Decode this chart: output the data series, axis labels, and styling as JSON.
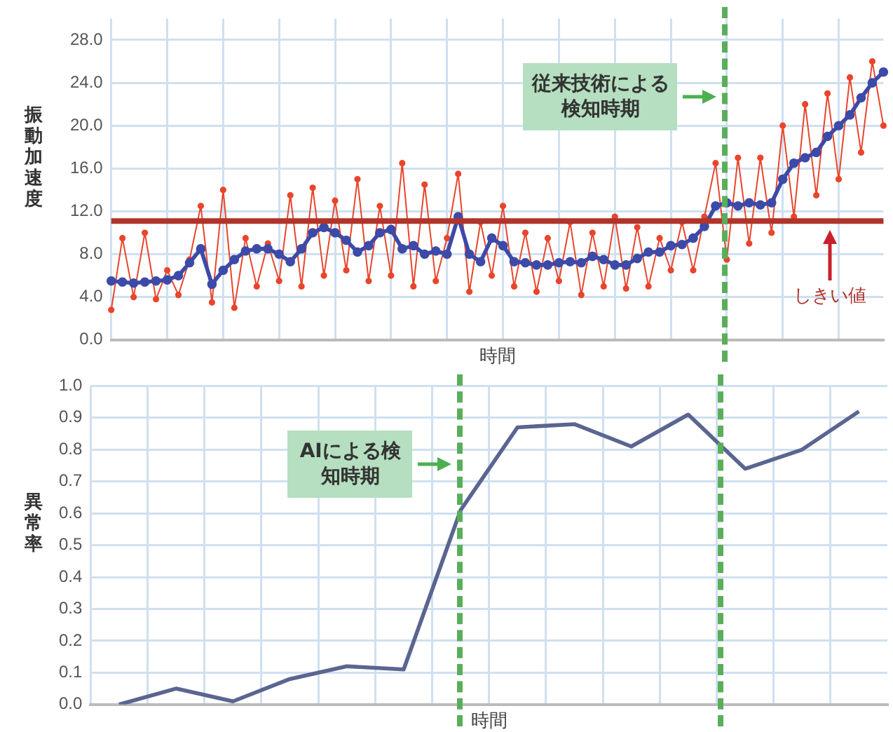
{
  "chart_data": [
    {
      "type": "line",
      "xlabel": "時間",
      "ylabel": "振動加速度",
      "marker": "circle",
      "grid": true,
      "legend": false,
      "tick_labels": "y",
      "annotations": [
        "従来技術による検知時期"
      ],
      "ylim": [
        0,
        30
      ],
      "yticks": [
        {
          "value": 0,
          "label": "0.0"
        },
        {
          "value": 4,
          "label": "4.0"
        },
        {
          "value": 8,
          "label": "8.0"
        },
        {
          "value": 12,
          "label": "12.0"
        },
        {
          "value": 16,
          "label": "16.0"
        },
        {
          "value": 20,
          "label": "20.0"
        },
        {
          "value": 24,
          "label": "24.0"
        },
        {
          "value": 28,
          "label": "28.0"
        }
      ],
      "categories": [
        null,
        null,
        null,
        null,
        null,
        null,
        null,
        null,
        null,
        null,
        null,
        null,
        null,
        null,
        null,
        null,
        null,
        null,
        null,
        null,
        null,
        null,
        null,
        null,
        null,
        null,
        null,
        null,
        null,
        null,
        null,
        null,
        null,
        null,
        null,
        null,
        null,
        null,
        null,
        null,
        null,
        null,
        null,
        null,
        null,
        null,
        null,
        null,
        null,
        null,
        null,
        null,
        null,
        null,
        null,
        null,
        null,
        null,
        null,
        null,
        null,
        null,
        null,
        null,
        null,
        null,
        null,
        null,
        null,
        null
      ],
      "series": [
        {
          "color": "#e8452c",
          "values": [
            2.8,
            9.5,
            4.0,
            10.0,
            3.8,
            6.5,
            4.2,
            7.5,
            12.5,
            3.5,
            14.0,
            3.0,
            9.5,
            5.0,
            9.0,
            5.5,
            13.5,
            5.0,
            14.2,
            6.0,
            13.0,
            6.5,
            15.0,
            5.5,
            12.5,
            6.0,
            16.5,
            5.0,
            14.5,
            5.5,
            9.5,
            15.5,
            4.5,
            11.0,
            6.0,
            12.5,
            5.0,
            10.0,
            4.5,
            9.5,
            5.5,
            11.0,
            4.2,
            10.0,
            5.0,
            11.5,
            4.8,
            10.5,
            5.0,
            9.5,
            6.5,
            11.0,
            6.5,
            11.5,
            16.5,
            7.5,
            17.0,
            9.0,
            17.0,
            10.0,
            20.0,
            11.5,
            22.0,
            13.5,
            23.0,
            15.0,
            24.5,
            17.5,
            26.0,
            20.0
          ]
        },
        {
          "color": "#3c4aa8",
          "values": [
            5.5,
            5.4,
            5.3,
            5.4,
            5.5,
            5.6,
            6.0,
            7.2,
            8.5,
            5.2,
            6.5,
            7.5,
            8.3,
            8.5,
            8.5,
            8.0,
            7.3,
            8.5,
            10.0,
            10.5,
            10.0,
            9.3,
            8.2,
            8.8,
            10.0,
            10.3,
            8.5,
            8.8,
            8.0,
            8.3,
            8.0,
            11.5,
            8.0,
            7.3,
            9.5,
            8.8,
            7.3,
            7.2,
            7.0,
            7.0,
            7.2,
            7.3,
            7.2,
            7.8,
            7.5,
            7.0,
            7.0,
            7.6,
            8.2,
            8.2,
            8.8,
            8.9,
            9.5,
            10.6,
            12.5,
            12.8,
            12.5,
            12.8,
            12.6,
            12.8,
            15.0,
            16.5,
            17.0,
            17.5,
            19.0,
            20.0,
            21.0,
            22.6,
            24.0,
            25.0
          ]
        }
      ],
      "ref_lines": [
        {
          "axis": "y",
          "value": 11.1,
          "label": "しきい値",
          "color": "#b0342a",
          "line_style": "solid"
        }
      ]
    },
    {
      "type": "line",
      "xlabel": "時間",
      "ylabel": "異常率",
      "grid": true,
      "legend": false,
      "tick_labels": "y",
      "annotations": [
        "AIによる検知時期"
      ],
      "ylim": [
        0,
        1
      ],
      "yticks": [
        {
          "value": 0,
          "label": "0.0"
        },
        {
          "value": 0.1,
          "label": "0.1"
        },
        {
          "value": 0.2,
          "label": "0.2"
        },
        {
          "value": 0.3,
          "label": "0.3"
        },
        {
          "value": 0.4,
          "label": "0.4"
        },
        {
          "value": 0.5,
          "label": "0.5"
        },
        {
          "value": 0.6,
          "label": "0.6"
        },
        {
          "value": 0.7,
          "label": "0.7"
        },
        {
          "value": 0.8,
          "label": "0.8"
        },
        {
          "value": 0.9,
          "label": "0.9"
        },
        {
          "value": 1,
          "label": "1.0"
        }
      ],
      "categories": [
        null,
        null,
        null,
        null,
        null,
        null,
        null,
        null,
        null,
        null,
        null,
        null,
        null,
        null
      ],
      "series": [
        {
          "color": "#5a6590",
          "values": [
            0.0,
            0.05,
            0.01,
            0.08,
            0.12,
            0.11,
            0.61,
            0.87,
            0.88,
            0.81,
            0.91,
            0.74,
            0.8,
            0.92
          ]
        }
      ]
    }
  ]
}
